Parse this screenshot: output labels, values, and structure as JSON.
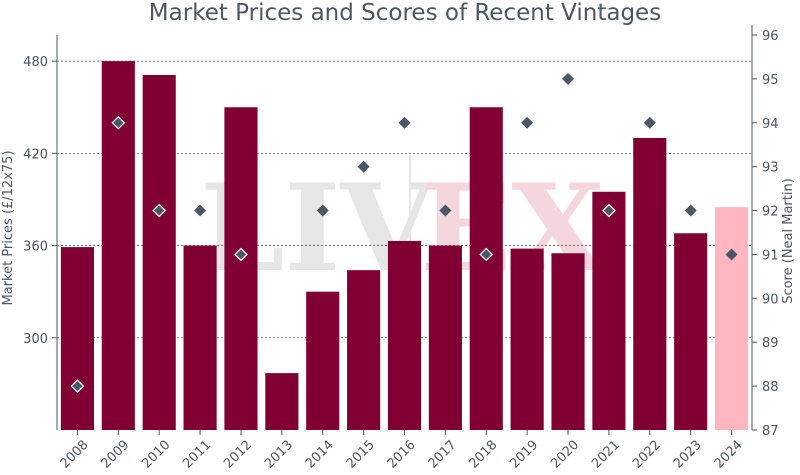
{
  "chart_data": {
    "type": "bar",
    "title": "Market Prices and Scores of Recent Vintages",
    "xlabel": "",
    "categories": [
      "2008",
      "2009",
      "2010",
      "2011",
      "2012",
      "2013",
      "2014",
      "2015",
      "2016",
      "2017",
      "2018",
      "2019",
      "2020",
      "2021",
      "2022",
      "2023",
      "2024"
    ],
    "series": [
      {
        "type": "bar",
        "axis": "left",
        "values": [
          359,
          480,
          471,
          360,
          450,
          277,
          330,
          344,
          363,
          360,
          450,
          358,
          355,
          395,
          430,
          368,
          385
        ],
        "colors": [
          "#800033",
          "#800033",
          "#800033",
          "#800033",
          "#800033",
          "#800033",
          "#800033",
          "#800033",
          "#800033",
          "#800033",
          "#800033",
          "#800033",
          "#800033",
          "#800033",
          "#800033",
          "#800033",
          "#ffb6c1"
        ]
      },
      {
        "type": "scatter",
        "axis": "right",
        "marker": "diamond",
        "values": [
          88,
          94,
          92,
          92,
          91,
          null,
          92,
          93,
          94,
          92,
          91,
          94,
          95,
          92,
          94,
          92,
          91
        ],
        "outlined": [
          true,
          true,
          true,
          false,
          true,
          false,
          false,
          false,
          false,
          false,
          true,
          false,
          false,
          true,
          false,
          false,
          false
        ],
        "color": "#4a5766"
      }
    ],
    "y_left": {
      "label": "Market Prices (£/12x75)",
      "range": [
        240,
        497
      ],
      "ticks": [
        300,
        360,
        420,
        480
      ]
    },
    "y_right": {
      "label": "Score (Neal Martin)",
      "range": [
        87,
        96
      ],
      "ticks": [
        87,
        88,
        89,
        90,
        91,
        92,
        93,
        94,
        95,
        96
      ]
    },
    "grid": "horizontal-dashed",
    "legend": "none",
    "watermark": "LIV-EX",
    "watermark_colors": [
      "#e6e6e6",
      "#f5d6dc"
    ]
  }
}
